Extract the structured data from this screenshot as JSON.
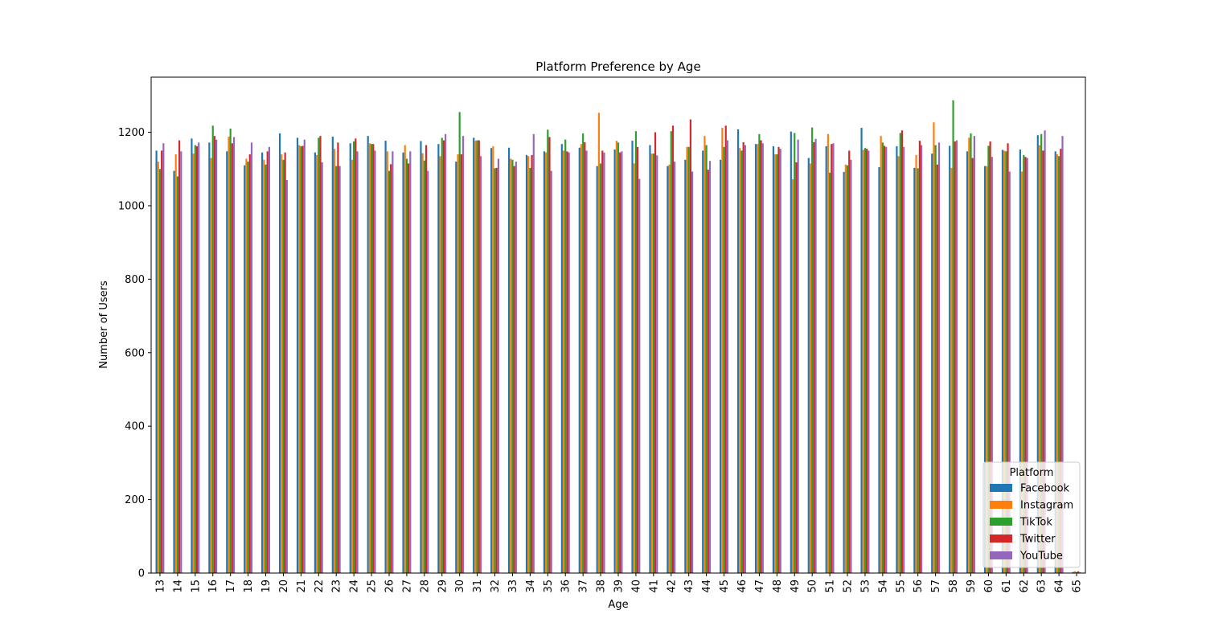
{
  "chart_data": {
    "type": "bar",
    "title": "Platform Preference by Age",
    "xlabel": "Age",
    "ylabel": "Number of Users",
    "ylim": [
      0,
      1350
    ],
    "yticks": [
      0,
      200,
      400,
      600,
      800,
      1000,
      1200
    ],
    "grid": false,
    "legend": {
      "title": "Platform",
      "placement": "lower-right"
    },
    "categories": [
      "13",
      "14",
      "15",
      "16",
      "17",
      "18",
      "19",
      "20",
      "21",
      "22",
      "23",
      "24",
      "25",
      "26",
      "27",
      "28",
      "29",
      "30",
      "31",
      "32",
      "33",
      "34",
      "35",
      "36",
      "37",
      "38",
      "39",
      "40",
      "41",
      "42",
      "43",
      "44",
      "45",
      "46",
      "47",
      "48",
      "49",
      "50",
      "51",
      "52",
      "53",
      "54",
      "55",
      "56",
      "57",
      "58",
      "59",
      "60",
      "61",
      "62",
      "63",
      "64",
      "65"
    ],
    "series": [
      {
        "name": "Facebook",
        "color": "#1f77b4",
        "values": [
          1150,
          1095,
          1183,
          1172,
          1148,
          1110,
          1145,
          1197,
          1185,
          1145,
          1188,
          1170,
          1190,
          1177,
          1145,
          1176,
          1168,
          1120,
          1185,
          1157,
          1158,
          1138,
          1148,
          1168,
          1158,
          1108,
          1153,
          1177,
          1165,
          1108,
          1125,
          1150,
          1125,
          1208,
          1168,
          1162,
          1202,
          1130,
          1162,
          1092,
          1212,
          1105,
          1162,
          1103,
          1142,
          1163,
          1148,
          1108,
          1152,
          1153,
          1192,
          1148,
          3
        ]
      },
      {
        "name": "Instagram",
        "color": "#ff7f0e",
        "values": [
          1120,
          1140,
          1142,
          1130,
          1188,
          1128,
          1125,
          1140,
          1165,
          1138,
          1155,
          1125,
          1170,
          1148,
          1165,
          1143,
          1135,
          1140,
          1177,
          1162,
          1128,
          1135,
          1145,
          1150,
          1168,
          1253,
          1177,
          1115,
          1142,
          1112,
          1160,
          1190,
          1212,
          1157,
          1168,
          1140,
          1072,
          1115,
          1195,
          1112,
          1152,
          1190,
          1135,
          1138,
          1227,
          1103,
          1185,
          1108,
          1150,
          1093,
          1165,
          1140,
          5
        ]
      },
      {
        "name": "TikTok",
        "color": "#2ca02c",
        "values": [
          1100,
          1080,
          1165,
          1218,
          1210,
          1120,
          1112,
          1125,
          1162,
          1185,
          1108,
          1175,
          1168,
          1095,
          1128,
          1123,
          1185,
          1255,
          1178,
          1102,
          1125,
          1103,
          1207,
          1180,
          1197,
          1115,
          1172,
          1203,
          1142,
          1203,
          1160,
          1165,
          1160,
          1150,
          1195,
          1140,
          1198,
          1213,
          1090,
          1110,
          1157,
          1172,
          1198,
          1102,
          1165,
          1287,
          1197,
          1163,
          1148,
          1138,
          1195,
          1135,
          3
        ]
      },
      {
        "name": "Twitter",
        "color": "#d62728",
        "values": [
          1150,
          1178,
          1162,
          1190,
          1170,
          1140,
          1148,
          1145,
          1163,
          1190,
          1172,
          1183,
          1168,
          1113,
          1115,
          1165,
          1178,
          1140,
          1178,
          1103,
          1108,
          1138,
          1187,
          1148,
          1173,
          1150,
          1145,
          1160,
          1200,
          1218,
          1235,
          1098,
          1218,
          1173,
          1178,
          1160,
          1118,
          1173,
          1168,
          1150,
          1155,
          1163,
          1205,
          1177,
          1112,
          1175,
          1130,
          1175,
          1170,
          1133,
          1150,
          1155,
          5
        ]
      },
      {
        "name": "YouTube",
        "color": "#9467bd",
        "values": [
          1170,
          1148,
          1172,
          1180,
          1187,
          1172,
          1160,
          1070,
          1180,
          1118,
          1108,
          1148,
          1150,
          1148,
          1148,
          1095,
          1195,
          1190,
          1135,
          1128,
          1120,
          1195,
          1095,
          1145,
          1150,
          1145,
          1148,
          1073,
          1137,
          1120,
          1093,
          1122,
          1178,
          1165,
          1170,
          1155,
          1180,
          1182,
          1170,
          1125,
          1150,
          1160,
          1160,
          1165,
          1172,
          1178,
          1190,
          1133,
          1093,
          1130,
          1205,
          1190,
          2
        ]
      }
    ]
  }
}
